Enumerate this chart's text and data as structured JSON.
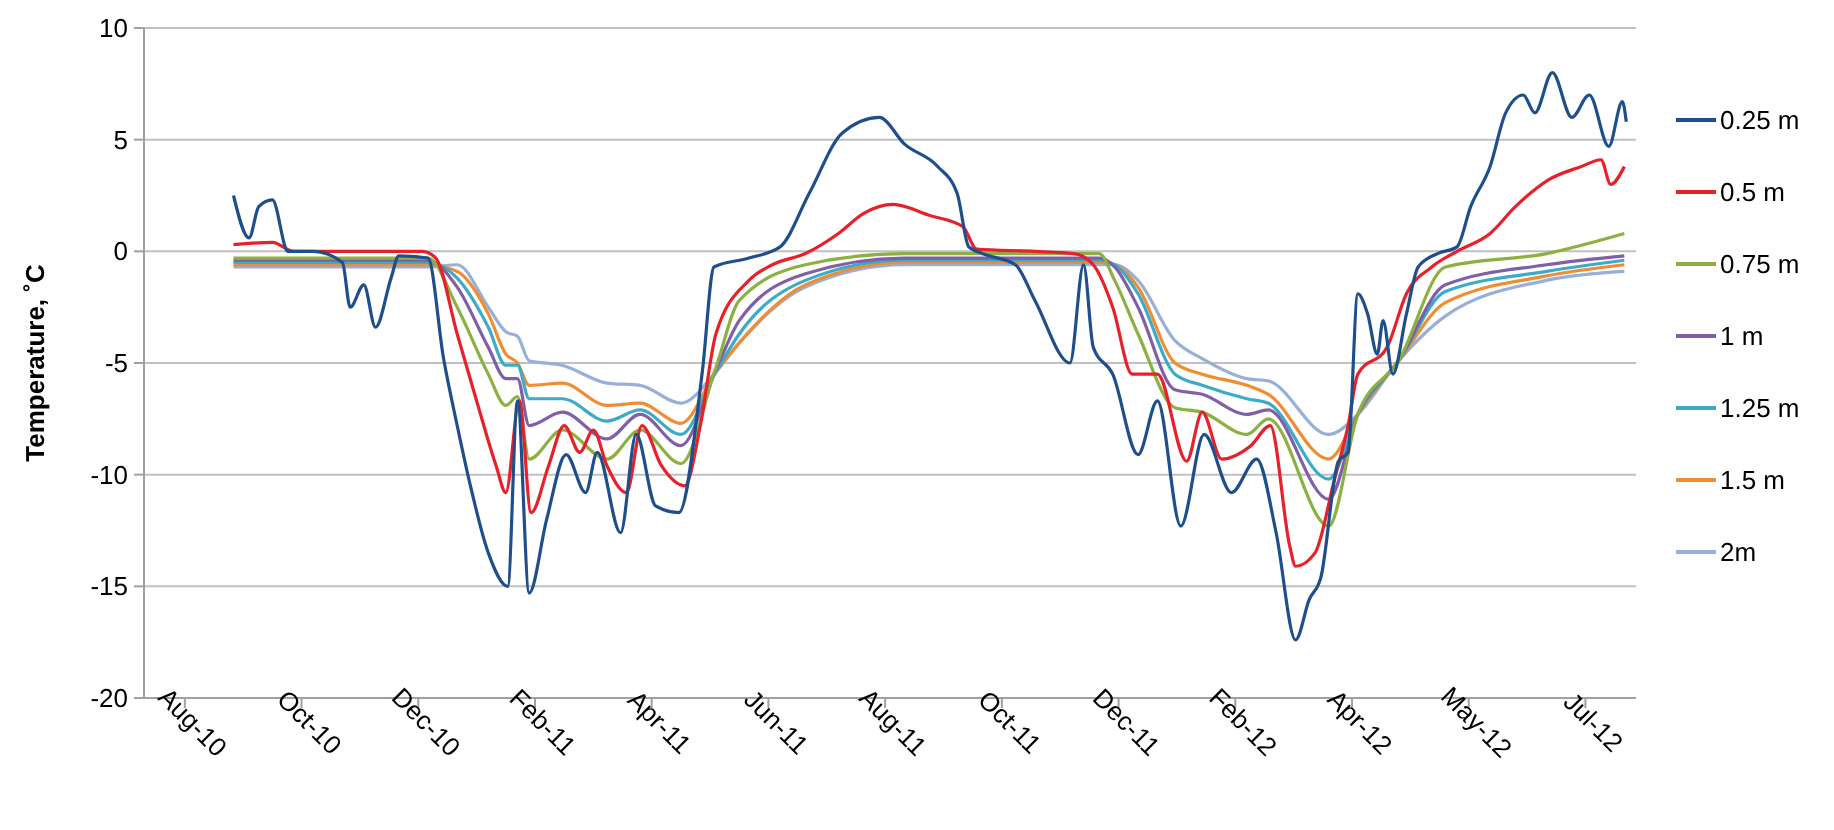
{
  "chart_data": {
    "type": "line",
    "ylabel": "Temperature, ˚C",
    "ylim": [
      -20,
      10
    ],
    "yticks": [
      -20,
      -15,
      -10,
      -5,
      0,
      5,
      10
    ],
    "xlim": [
      "2010-07-20",
      "2012-08-25"
    ],
    "xticks": [
      {
        "value": "2010-08-10",
        "label": "Aug-10"
      },
      {
        "value": "2010-10-09",
        "label": "Oct-10"
      },
      {
        "value": "2010-12-08",
        "label": "Dec-10"
      },
      {
        "value": "2011-02-06",
        "label": "Feb-11"
      },
      {
        "value": "2011-04-07",
        "label": "Apr-11"
      },
      {
        "value": "2011-06-06",
        "label": "Jun-11"
      },
      {
        "value": "2011-08-05",
        "label": "Aug-11"
      },
      {
        "value": "2011-10-04",
        "label": "Oct-11"
      },
      {
        "value": "2011-12-03",
        "label": "Dec-11"
      },
      {
        "value": "2012-02-01",
        "label": "Feb-12"
      },
      {
        "value": "2012-04-01",
        "label": "Apr-12"
      },
      {
        "value": "2012-05-31",
        "label": "May-12"
      },
      {
        "value": "2012-07-30",
        "label": "Jul-12"
      }
    ],
    "grid": "y",
    "legend": "right",
    "line_style": "solid",
    "marker": "none",
    "series": [
      {
        "name": "0.25 m",
        "color": "#1f4e8c",
        "x": [
          "2010-09-04",
          "2010-09-12",
          "2010-09-17",
          "2010-09-24",
          "2010-10-02",
          "2010-10-15",
          "2010-10-30",
          "2010-11-03",
          "2010-11-10",
          "2010-11-16",
          "2010-11-24",
          "2010-11-28",
          "2010-12-13",
          "2010-12-21",
          "2010-12-28",
          "2011-01-03",
          "2011-01-13",
          "2011-01-23",
          "2011-01-28",
          "2011-02-03",
          "2011-02-12",
          "2011-02-22",
          "2011-03-04",
          "2011-03-10",
          "2011-03-22",
          "2011-03-30",
          "2011-04-09",
          "2011-04-21",
          "2011-05-03",
          "2011-05-09",
          "2011-05-27",
          "2011-06-12",
          "2011-06-27",
          "2011-07-14",
          "2011-08-02",
          "2011-08-15",
          "2011-09-01",
          "2011-09-11",
          "2011-09-17",
          "2011-09-24",
          "2011-10-11",
          "2011-10-21",
          "2011-11-08",
          "2011-11-15",
          "2011-11-20",
          "2011-11-30",
          "2011-12-13",
          "2011-12-23",
          "2012-01-04",
          "2012-01-16",
          "2012-01-30",
          "2012-02-12",
          "2012-02-22",
          "2012-03-03",
          "2012-03-10",
          "2012-03-16",
          "2012-03-25",
          "2012-03-30",
          "2012-04-04",
          "2012-04-09",
          "2012-04-14",
          "2012-04-17",
          "2012-04-22",
          "2012-04-29",
          "2012-05-05",
          "2012-05-15",
          "2012-05-25",
          "2012-06-01",
          "2012-06-11",
          "2012-06-19",
          "2012-06-28",
          "2012-07-04",
          "2012-07-13",
          "2012-07-23",
          "2012-08-01",
          "2012-08-11",
          "2012-08-18",
          "2012-08-20"
        ],
        "values": [
          2.5,
          0.6,
          2.0,
          2.3,
          0,
          0,
          -0.5,
          -2.5,
          -1.5,
          -3.4,
          -1.2,
          -0.2,
          -0.3,
          -4.8,
          -7.8,
          -10.2,
          -13.5,
          -15,
          -6.7,
          -15.3,
          -12,
          -9.1,
          -10.8,
          -9,
          -12.6,
          -8.2,
          -11.4,
          -11.7,
          -5.4,
          -0.7,
          -0.3,
          0.2,
          2.6,
          5.3,
          6,
          4.8,
          3.8,
          2.6,
          0.2,
          -0.1,
          -0.6,
          -2.2,
          -5,
          -0.6,
          -4.3,
          -5.5,
          -9.1,
          -6.7,
          -12.3,
          -8.2,
          -10.8,
          -9.3,
          -12.6,
          -17.4,
          -15.6,
          -14.6,
          -9.4,
          -9.0,
          -1.9,
          -2.8,
          -4.6,
          -3.1,
          -5.5,
          -2.8,
          -0.7,
          -0.1,
          0.2,
          2.0,
          3.8,
          6.2,
          7.0,
          6.2,
          8.0,
          6.0,
          7.0,
          4.7,
          6.7,
          5.8
        ]
      },
      {
        "name": "0.5 m",
        "color": "#e8202a",
        "x": [
          "2010-09-04",
          "2010-09-24",
          "2010-10-05",
          "2010-12-10",
          "2010-12-17",
          "2010-12-28",
          "2011-01-07",
          "2011-01-17",
          "2011-01-22",
          "2011-01-29",
          "2011-02-04",
          "2011-02-13",
          "2011-02-21",
          "2011-03-01",
          "2011-03-08",
          "2011-03-15",
          "2011-03-25",
          "2011-04-02",
          "2011-04-12",
          "2011-04-24",
          "2011-05-02",
          "2011-05-10",
          "2011-05-27",
          "2011-06-08",
          "2011-06-25",
          "2011-07-12",
          "2011-07-25",
          "2011-08-09",
          "2011-08-28",
          "2011-09-14",
          "2011-09-21",
          "2011-10-21",
          "2011-11-10",
          "2011-11-20",
          "2011-11-30",
          "2011-12-10",
          "2011-12-23",
          "2012-01-07",
          "2012-01-15",
          "2012-01-25",
          "2012-02-09",
          "2012-02-19",
          "2012-02-29",
          "2012-03-03",
          "2012-03-13",
          "2012-03-23",
          "2012-03-30",
          "2012-04-04",
          "2012-04-19",
          "2012-04-29",
          "2012-05-12",
          "2012-05-25",
          "2012-06-11",
          "2012-06-24",
          "2012-07-11",
          "2012-07-28",
          "2012-08-07",
          "2012-08-12",
          "2012-08-19"
        ],
        "values": [
          0.3,
          0.4,
          0,
          0,
          -0.3,
          -3.7,
          -6.7,
          -9.6,
          -10.8,
          -6.7,
          -11.7,
          -9.6,
          -7.8,
          -9,
          -8,
          -9.6,
          -10.8,
          -7.8,
          -9.6,
          -10.5,
          -7.8,
          -3.7,
          -1.3,
          -0.6,
          -0.1,
          0.8,
          1.7,
          2.1,
          1.6,
          1.1,
          0.1,
          0,
          -0.1,
          -0.6,
          -2.5,
          -5.5,
          -5.5,
          -9.4,
          -7.2,
          -9.3,
          -8.7,
          -7.8,
          -13.2,
          -14.1,
          -13.5,
          -10.2,
          -7.8,
          -5.5,
          -4.3,
          -1.9,
          -0.7,
          0,
          0.8,
          2.0,
          3.2,
          3.8,
          4.1,
          3.0,
          3.8
        ]
      },
      {
        "name": "0.75 m",
        "color": "#8db043",
        "values": [
          -0.3,
          -0.3,
          -2.5,
          -5.5,
          -6.9,
          -6.5,
          -9.3,
          -8,
          -9.3,
          -8,
          -9.5,
          -5.2,
          -2.2,
          -0.6,
          -0.1,
          -0.1,
          -1.3,
          -3.7,
          -7,
          -7.2,
          -8.2,
          -7.5,
          -12.3,
          -7.3,
          -4.9,
          -0.7,
          -0.1,
          0.8
        ]
      },
      {
        "name": "1 m",
        "color": "#7f5fa8",
        "values": [
          -0.4,
          -0.4,
          -1.6,
          -4.3,
          -5.7,
          -5.7,
          -7.8,
          -7.2,
          -8.4,
          -7.3,
          -8.7,
          -5.3,
          -3.1,
          -1.0,
          -0.3,
          -0.3,
          -0.7,
          -2.5,
          -6.2,
          -6.4,
          -7.3,
          -7.1,
          -11.1,
          -7.3,
          -4.9,
          -1.5,
          -0.6,
          -0.2
        ]
      },
      {
        "name": "1.25 m",
        "color": "#3cabc8",
        "values": [
          -0.5,
          -0.5,
          -1.2,
          -3.4,
          -5.1,
          -5.1,
          -6.6,
          -6.6,
          -7.6,
          -7.1,
          -8.2,
          -5.4,
          -3.7,
          -1.3,
          -0.4,
          -0.4,
          -0.6,
          -1.9,
          -5.5,
          -6.0,
          -6.6,
          -6.8,
          -10.2,
          -7.3,
          -4.9,
          -1.8,
          -0.9,
          -0.4
        ]
      },
      {
        "name": "1.5 m",
        "color": "#f08c32",
        "values": [
          -0.6,
          -0.6,
          -0.9,
          -2.8,
          -4.6,
          -5.0,
          -6.0,
          -5.9,
          -6.9,
          -6.8,
          -7.7,
          -5.4,
          -4.1,
          -1.5,
          -0.5,
          -0.5,
          -0.6,
          -1.6,
          -5.0,
          -5.5,
          -6.0,
          -6.4,
          -9.3,
          -7.3,
          -4.9,
          -2.3,
          -1.1,
          -0.6
        ]
      },
      {
        "name": "2m",
        "color": "#98afd8",
        "values": [
          -0.7,
          -0.7,
          -0.6,
          -2.5,
          -3.6,
          -3.8,
          -4.9,
          -5.1,
          -5.9,
          -6.0,
          -6.8,
          -5.4,
          -4.1,
          -1.6,
          -0.6,
          -0.6,
          -0.6,
          -1.3,
          -4.0,
          -4.8,
          -5.7,
          -5.8,
          -8.2,
          -7.3,
          -4.9,
          -2.9,
          -1.3,
          -0.9
        ]
      }
    ],
    "x": [
      "2010-09-04",
      "2010-12-13",
      "2010-12-28",
      "2011-01-13",
      "2011-01-22",
      "2011-01-28",
      "2011-02-03",
      "2011-02-20",
      "2011-03-15",
      "2011-04-01",
      "2011-04-22",
      "2011-05-10",
      "2011-05-22",
      "2011-06-25",
      "2011-08-15",
      "2011-11-23",
      "2011-12-01",
      "2011-12-13",
      "2012-01-01",
      "2012-01-15",
      "2012-02-07",
      "2012-02-18",
      "2012-03-20",
      "2012-04-04",
      "2012-04-25",
      "2012-05-19",
      "2012-07-10",
      "2012-08-19"
    ]
  }
}
